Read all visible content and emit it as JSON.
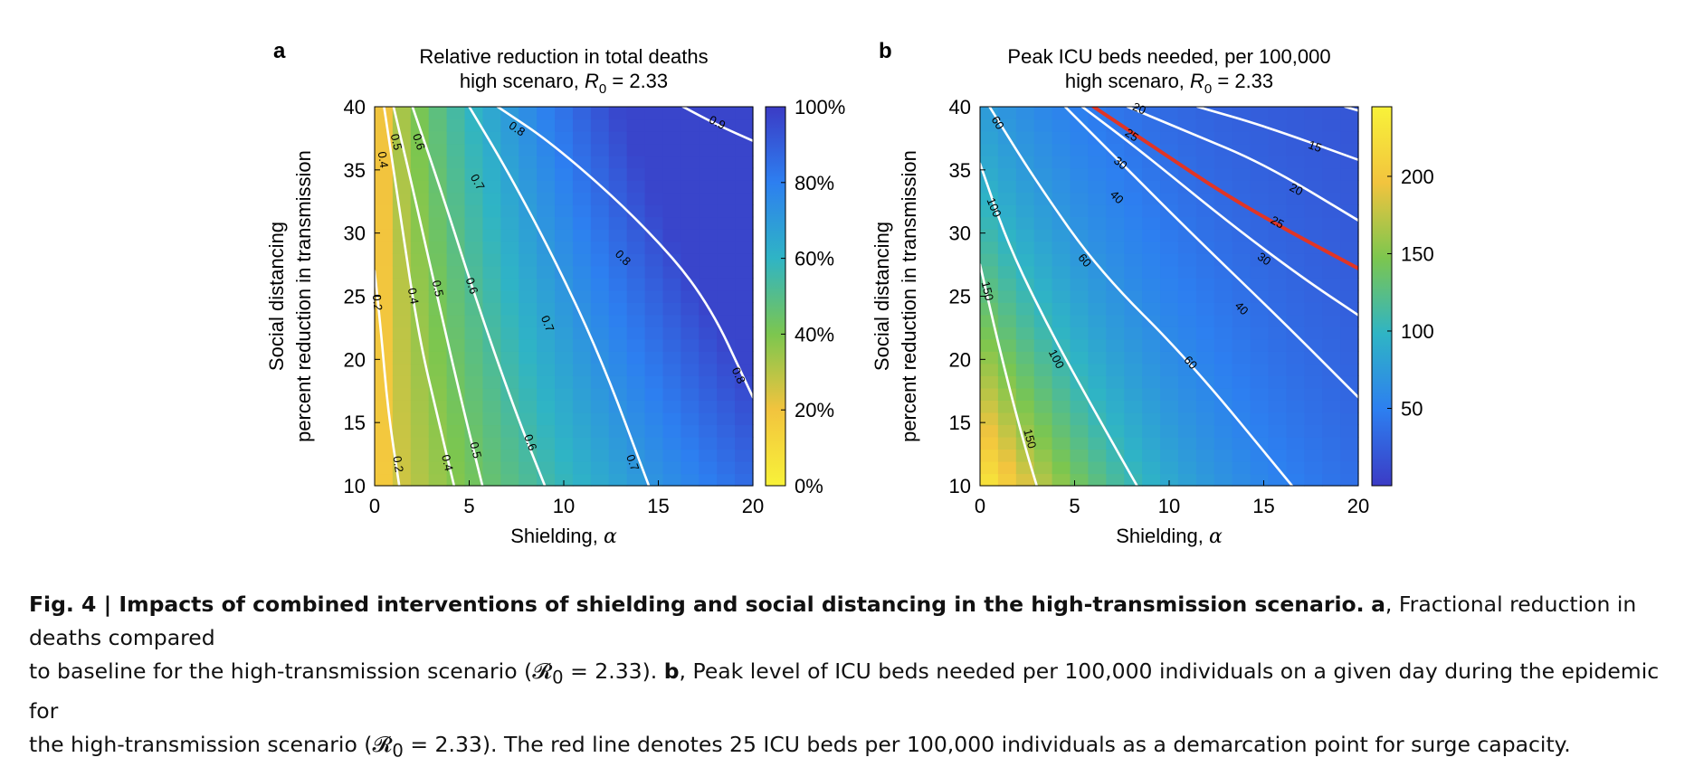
{
  "chart_data": [
    {
      "panel_label": "a",
      "type": "heatmap",
      "title_line1": "Relative reduction in total deaths",
      "title_line2_prefix": "high scenaro, ",
      "title_line2_symbol": "R",
      "title_line2_subscript": "0",
      "title_line2_suffix": " = 2.33",
      "xlabel_text": "Shielding, ",
      "xlabel_symbol": "α",
      "ylabel_line1": "Social distancing",
      "ylabel_line2": "percent reduction in transmission",
      "xlim": [
        0,
        20
      ],
      "ylim": [
        10,
        40
      ],
      "x_ticks": [
        0,
        5,
        10,
        15,
        20
      ],
      "y_ticks": [
        10,
        15,
        20,
        25,
        30,
        35,
        40
      ],
      "colorbar": {
        "range": [
          0,
          1
        ],
        "ticks": [
          0,
          0.2,
          0.4,
          0.6,
          0.8,
          1.0
        ],
        "tick_labels": [
          "0%",
          "20%",
          "40%",
          "60%",
          "80%",
          "100%"
        ],
        "colors": [
          "#f8f239",
          "#f2c43e",
          "#7cc64f",
          "#2fb4c5",
          "#2d7ff0",
          "#3b3bc5"
        ]
      },
      "contours": [
        {
          "level": 0.2,
          "label": "0.2",
          "points": [
            [
              0.0,
              27
            ],
            [
              0.35,
              22
            ],
            [
              0.7,
              16
            ],
            [
              1.3,
              10
            ]
          ],
          "label_positions": [
            [
              0.1,
              24.5
            ],
            [
              1.2,
              11.7
            ]
          ]
        },
        {
          "level": 0.4,
          "label": "0.4",
          "points": [
            [
              0.5,
              40
            ],
            [
              1.2,
              33
            ],
            [
              2.3,
              22
            ],
            [
              3.4,
              15
            ],
            [
              4.2,
              10
            ]
          ],
          "label_positions": [
            [
              0.4,
              35.8
            ],
            [
              2.0,
              25.0
            ],
            [
              3.8,
              11.8
            ]
          ]
        },
        {
          "level": 0.5,
          "label": "0.5",
          "points": [
            [
              1.0,
              40
            ],
            [
              2.1,
              33
            ],
            [
              3.3,
              25
            ],
            [
              4.7,
              16
            ],
            [
              5.7,
              10
            ]
          ],
          "label_positions": [
            [
              1.1,
              37.2
            ],
            [
              3.3,
              25.6
            ],
            [
              5.3,
              12.8
            ]
          ]
        },
        {
          "level": 0.6,
          "label": "0.6",
          "points": [
            [
              2.0,
              40
            ],
            [
              3.6,
              33
            ],
            [
              5.3,
              25
            ],
            [
              7.4,
              16
            ],
            [
              9.0,
              10
            ]
          ],
          "label_positions": [
            [
              2.3,
              37.2
            ],
            [
              5.1,
              25.8
            ],
            [
              8.2,
              13.4
            ]
          ]
        },
        {
          "level": 0.7,
          "label": "0.7",
          "points": [
            [
              5.0,
              40
            ],
            [
              7.0,
              35
            ],
            [
              9.5,
              28
            ],
            [
              12.0,
              20
            ],
            [
              14.5,
              10
            ]
          ],
          "label_positions": [
            [
              5.4,
              34.0
            ],
            [
              9.1,
              22.8
            ],
            [
              13.6,
              11.8
            ]
          ]
        },
        {
          "level": 0.8,
          "label": "0.8",
          "points": [
            [
              6.5,
              40
            ],
            [
              9.5,
              37
            ],
            [
              14.0,
              31
            ],
            [
              17.5,
              25
            ],
            [
              20.0,
              17
            ]
          ],
          "label_positions": [
            [
              7.5,
              38.2
            ],
            [
              13.1,
              28.0
            ],
            [
              19.2,
              18.7
            ]
          ]
        },
        {
          "level": 0.9,
          "label": "0.9",
          "points": [
            [
              16.3,
              40
            ],
            [
              18.2,
              38.5
            ],
            [
              20.0,
              37.3
            ]
          ],
          "label_positions": [
            [
              18.1,
              38.7
            ]
          ]
        }
      ]
    },
    {
      "panel_label": "b",
      "type": "heatmap",
      "title_line1": "Peak ICU beds needed, per 100,000",
      "title_line2_prefix": "high scenaro, ",
      "title_line2_symbol": "R",
      "title_line2_subscript": "0",
      "title_line2_suffix": " = 2.33",
      "xlabel_text": "Shielding, ",
      "xlabel_symbol": "α",
      "ylabel_line1": "Social distancing",
      "ylabel_line2": "percent reduction in transmission",
      "xlim": [
        0,
        20
      ],
      "ylim": [
        10,
        40
      ],
      "x_ticks": [
        0,
        5,
        10,
        15,
        20
      ],
      "y_ticks": [
        10,
        15,
        20,
        25,
        30,
        35,
        40
      ],
      "colorbar": {
        "range": [
          0,
          245
        ],
        "ticks": [
          50,
          100,
          150,
          200
        ],
        "tick_labels": [
          "50",
          "100",
          "150",
          "200"
        ],
        "colors": [
          "#3b3bc5",
          "#2d7ff0",
          "#2fb4c5",
          "#7cc64f",
          "#f2c43e",
          "#f8f239"
        ]
      },
      "contours": [
        {
          "level": 150,
          "label": "150",
          "points": [
            [
              0.0,
              27.5
            ],
            [
              1.0,
              21
            ],
            [
              2.2,
              14
            ],
            [
              3.0,
              10
            ]
          ],
          "label_positions": [
            [
              0.35,
              25.4
            ],
            [
              2.6,
              13.7
            ]
          ]
        },
        {
          "level": 100,
          "label": "100",
          "points": [
            [
              0.0,
              35.5
            ],
            [
              1.5,
              29
            ],
            [
              3.8,
              22
            ],
            [
              6.4,
              15
            ],
            [
              8.3,
              10
            ]
          ],
          "label_positions": [
            [
              0.7,
              32.0
            ],
            [
              4.0,
              20.0
            ]
          ]
        },
        {
          "level": 60,
          "label": "60",
          "points": [
            [
              0.5,
              40
            ],
            [
              3.0,
              34
            ],
            [
              6.3,
              27
            ],
            [
              11.0,
              20
            ],
            [
              16.5,
              10
            ]
          ],
          "label_positions": [
            [
              0.9,
              38.7
            ],
            [
              5.5,
              27.8
            ],
            [
              11.1,
              19.7
            ]
          ]
        },
        {
          "level": 40,
          "label": "40",
          "points": [
            [
              4.5,
              40
            ],
            [
              7.5,
              35.5
            ],
            [
              11.5,
              29.5
            ],
            [
              16.0,
              23
            ],
            [
              20.0,
              17
            ]
          ],
          "label_positions": [
            [
              7.2,
              32.8
            ],
            [
              13.8,
              24.0
            ]
          ]
        },
        {
          "level": 30,
          "label": "30",
          "points": [
            [
              5.4,
              40
            ],
            [
              8.5,
              36.5
            ],
            [
              13.0,
              31
            ],
            [
              17.0,
              26.5
            ],
            [
              20.0,
              23.5
            ]
          ],
          "label_positions": [
            [
              7.4,
              35.5
            ],
            [
              15.0,
              27.9
            ]
          ]
        },
        {
          "level": 25,
          "label": "25",
          "highlight": true,
          "color": "#e03525",
          "points": [
            [
              6.0,
              40
            ],
            [
              9.5,
              36.5
            ],
            [
              13.0,
              33
            ],
            [
              16.5,
              30
            ],
            [
              20.0,
              27.2
            ]
          ],
          "label_positions": [
            [
              8.0,
              37.7
            ],
            [
              15.7,
              30.8
            ]
          ]
        },
        {
          "level": 20,
          "label": "20",
          "points": [
            [
              7.8,
              40
            ],
            [
              11.0,
              38
            ],
            [
              15.0,
              35.5
            ],
            [
              20.0,
              31
            ]
          ],
          "label_positions": [
            [
              8.4,
              39.8
            ],
            [
              16.7,
              33.4
            ]
          ]
        },
        {
          "level": 15,
          "label": "15",
          "points": [
            [
              11.5,
              40
            ],
            [
              15.0,
              38.5
            ],
            [
              20.0,
              35.8
            ]
          ],
          "label_positions": [
            [
              17.7,
              36.8
            ]
          ]
        },
        {
          "level": 10,
          "label": "",
          "points": [
            [
              19.3,
              40
            ],
            [
              20.0,
              39.7
            ]
          ],
          "label_positions": []
        }
      ]
    }
  ],
  "caption": {
    "bold_text": "Fig. 4 | Impacts of combined interventions of shielding and social distancing in the high-transmission scenario.",
    "label_a": "a",
    "text_a1": ", Fractional reduction in deaths compared",
    "text_a2": "to baseline for the high-transmission scenario (",
    "symbol": "𝓡",
    "subscript": "0",
    "equals_value": " = 2.33). ",
    "label_b": "b",
    "text_b1": ", Peak level of ICU beds needed per 100,000 individuals on a given day during the epidemic for",
    "text_b2": "the high-transmission scenario (",
    "text_b3": "). The red line denotes 25 ICU beds per 100,000 individuals as a demarcation point for surge capacity."
  }
}
